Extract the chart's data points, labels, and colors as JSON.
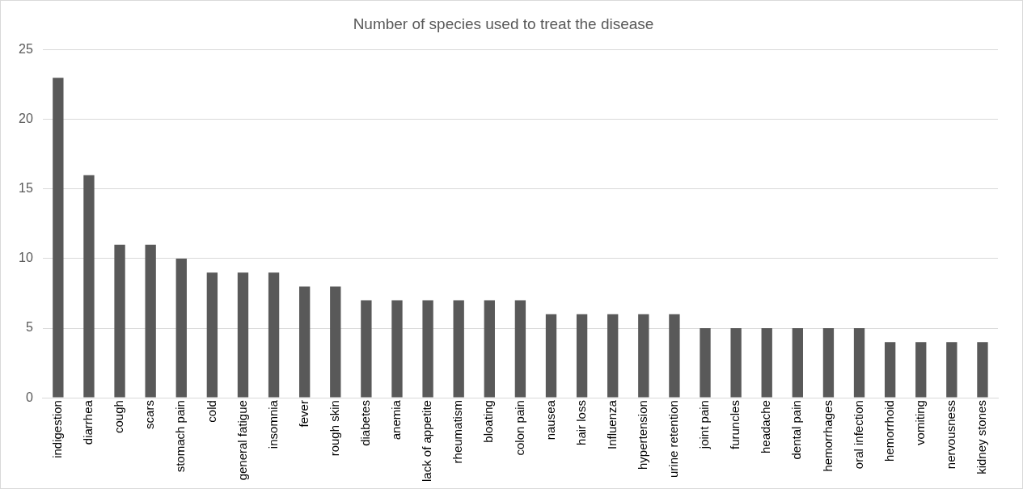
{
  "chart_data": {
    "type": "bar",
    "title": "Number of species used to treat the disease",
    "categories": [
      "indigestion",
      "diarrhea",
      "cough",
      "scars",
      "stomach pain",
      "cold",
      "general fatigue",
      "insomnia",
      "fever",
      "rough skin",
      "diabetes",
      "anemia",
      "lack of appetite",
      "rheumatism",
      "bloating",
      "colon pain",
      "nausea",
      "hair loss",
      "Influenza",
      "hypertension",
      "urine retention",
      "joint pain",
      "furuncles",
      "headache",
      "dental pain",
      "hemorrhages",
      "oral infection",
      "hemorrhoid",
      "vomiting",
      "nervousness",
      "kidney stones"
    ],
    "values": [
      23,
      16,
      11,
      11,
      10,
      9,
      9,
      9,
      8,
      8,
      7,
      7,
      7,
      7,
      7,
      7,
      6,
      6,
      6,
      6,
      6,
      5,
      5,
      5,
      5,
      5,
      5,
      4,
      4,
      4,
      4
    ],
    "color": "#595959",
    "ylim": [
      0,
      25
    ],
    "yticks": [
      0,
      5,
      10,
      15,
      20,
      25
    ],
    "grid": "y"
  }
}
